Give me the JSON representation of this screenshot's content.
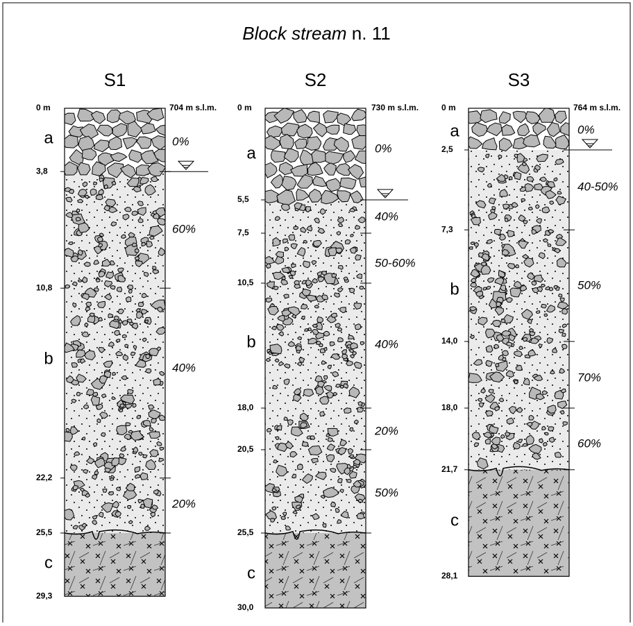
{
  "title": {
    "italic": "Block stream",
    "rest": " n. 11"
  },
  "columns": [
    {
      "name": "S1",
      "top": "0 m",
      "elevation": "704 m s.l.m.",
      "depths": [
        {
          "value": 3.8,
          "label": "3,8"
        },
        {
          "value": 10.8,
          "label": "10,8"
        },
        {
          "value": 22.2,
          "label": "22,2"
        },
        {
          "value": 25.5,
          "label": "25,5"
        },
        {
          "value": 29.3,
          "label": "29,3"
        }
      ],
      "units": [
        "a",
        "b",
        "c"
      ],
      "percentages": [
        "0%",
        "60%",
        "40%",
        "20%"
      ]
    },
    {
      "name": "S2",
      "top": "0 m",
      "elevation": "730 m s.l.m.",
      "depths": [
        {
          "value": 5.5,
          "label": "5,5"
        },
        {
          "value": 7.5,
          "label": "7,5"
        },
        {
          "value": 10.5,
          "label": "10,5"
        },
        {
          "value": 18.0,
          "label": "18,0"
        },
        {
          "value": 20.5,
          "label": "20,5"
        },
        {
          "value": 25.5,
          "label": "25,5"
        },
        {
          "value": 30.0,
          "label": "30,0"
        }
      ],
      "units": [
        "a",
        "b",
        "c"
      ],
      "percentages": [
        "0%",
        "40%",
        "50-60%",
        "40%",
        "20%",
        "50%"
      ]
    },
    {
      "name": "S3",
      "top": "0 m",
      "elevation": "764 m s.l.m.",
      "depths": [
        {
          "value": 2.5,
          "label": "2,5"
        },
        {
          "value": 7.3,
          "label": "7,3"
        },
        {
          "value": 14.0,
          "label": "14,0"
        },
        {
          "value": 18.0,
          "label": "18,0"
        },
        {
          "value": 21.7,
          "label": "21,7"
        },
        {
          "value": 28.1,
          "label": "28,1"
        }
      ],
      "units": [
        "a",
        "b",
        "c"
      ],
      "percentages": [
        "0%",
        "40-50%",
        "50%",
        "70%",
        "60%"
      ]
    }
  ]
}
